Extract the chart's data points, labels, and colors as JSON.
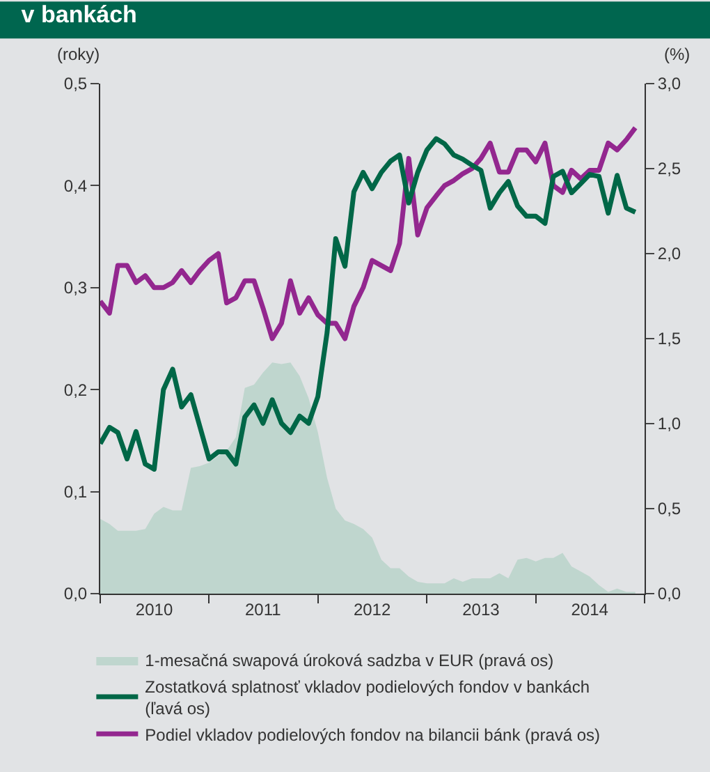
{
  "chart_data": {
    "type": "line",
    "title": "v bankách",
    "ylabel": "(roky)",
    "y2label": "(%)",
    "x": [
      "2010-01",
      "2010-02",
      "2010-03",
      "2010-04",
      "2010-05",
      "2010-06",
      "2010-07",
      "2010-08",
      "2010-09",
      "2010-10",
      "2010-11",
      "2010-12",
      "2011-01",
      "2011-02",
      "2011-03",
      "2011-04",
      "2011-05",
      "2011-06",
      "2011-07",
      "2011-08",
      "2011-09",
      "2011-10",
      "2011-11",
      "2011-12",
      "2012-01",
      "2012-02",
      "2012-03",
      "2012-04",
      "2012-05",
      "2012-06",
      "2012-07",
      "2012-08",
      "2012-09",
      "2012-10",
      "2012-11",
      "2012-12",
      "2013-01",
      "2013-02",
      "2013-03",
      "2013-04",
      "2013-05",
      "2013-06",
      "2013-07",
      "2013-08",
      "2013-09",
      "2013-10",
      "2013-11",
      "2013-12",
      "2014-01",
      "2014-02",
      "2014-03",
      "2014-04",
      "2014-05",
      "2014-06",
      "2014-07",
      "2014-08",
      "2014-09",
      "2014-10",
      "2014-11",
      "2014-12"
    ],
    "series": [
      {
        "name": "1-mesačná swapová úroková sadzba v EUR (pravá os)",
        "type": "area",
        "axis": "y2",
        "color": "#bfd6ce",
        "values": [
          0.44,
          0.41,
          0.37,
          0.37,
          0.37,
          0.38,
          0.47,
          0.51,
          0.49,
          0.49,
          0.74,
          0.75,
          0.77,
          0.81,
          0.84,
          0.92,
          1.21,
          1.23,
          1.3,
          1.36,
          1.35,
          1.36,
          1.28,
          1.15,
          0.95,
          0.68,
          0.5,
          0.43,
          0.41,
          0.38,
          0.33,
          0.2,
          0.15,
          0.15,
          0.1,
          0.07,
          0.06,
          0.06,
          0.06,
          0.09,
          0.07,
          0.09,
          0.09,
          0.09,
          0.12,
          0.09,
          0.2,
          0.21,
          0.19,
          0.21,
          0.21,
          0.24,
          0.16,
          0.13,
          0.1,
          0.05,
          0.01,
          0.03,
          0.01,
          0.01
        ]
      },
      {
        "name": "Zostatková splatnosť vkladov podielových fondov v bankách (ľavá os)",
        "axis": "y",
        "color": "#006747",
        "values": [
          0.147,
          0.163,
          0.158,
          0.132,
          0.159,
          0.127,
          0.122,
          0.2,
          0.22,
          0.183,
          0.195,
          0.164,
          0.132,
          0.139,
          0.139,
          0.127,
          0.173,
          0.185,
          0.167,
          0.19,
          0.167,
          0.158,
          0.174,
          0.167,
          0.193,
          0.256,
          0.348,
          0.321,
          0.394,
          0.413,
          0.397,
          0.413,
          0.424,
          0.43,
          0.383,
          0.413,
          0.435,
          0.446,
          0.441,
          0.43,
          0.426,
          0.42,
          0.415,
          0.378,
          0.393,
          0.404,
          0.38,
          0.37,
          0.37,
          0.363,
          0.409,
          0.414,
          0.393,
          0.402,
          0.411,
          0.409,
          0.373,
          0.41,
          0.378,
          0.374
        ]
      },
      {
        "name": "Podiel vkladov podielových fondov na bilancii bánk (pravá os)",
        "axis": "y2",
        "color": "#93278f",
        "values": [
          1.72,
          1.65,
          1.93,
          1.93,
          1.83,
          1.87,
          1.8,
          1.8,
          1.83,
          1.9,
          1.83,
          1.9,
          1.96,
          2.0,
          1.71,
          1.74,
          1.84,
          1.84,
          1.68,
          1.5,
          1.59,
          1.84,
          1.65,
          1.74,
          1.64,
          1.59,
          1.59,
          1.5,
          1.69,
          1.8,
          1.96,
          1.93,
          1.9,
          2.06,
          2.56,
          2.11,
          2.27,
          2.34,
          2.4,
          2.43,
          2.47,
          2.5,
          2.56,
          2.65,
          2.48,
          2.48,
          2.61,
          2.61,
          2.54,
          2.65,
          2.4,
          2.36,
          2.49,
          2.44,
          2.49,
          2.49,
          2.65,
          2.61,
          2.67,
          2.74
        ]
      }
    ],
    "xlim": [
      "2010-01-01",
      "2015-01-01"
    ],
    "xticks": [
      {
        "value": "2010-01-01",
        "label": null
      },
      {
        "value": "2010-07-01",
        "label": "2010"
      },
      {
        "value": "2011-01-01",
        "label": null
      },
      {
        "value": "2011-07-01",
        "label": "2011"
      },
      {
        "value": "2012-01-01",
        "label": null
      },
      {
        "value": "2012-07-01",
        "label": "2012"
      },
      {
        "value": "2013-01-01",
        "label": null
      },
      {
        "value": "2013-07-01",
        "label": "2013"
      },
      {
        "value": "2014-01-01",
        "label": null
      },
      {
        "value": "2014-07-01",
        "label": "2014"
      },
      {
        "value": "2015-01-01",
        "label": null
      }
    ],
    "ylim": [
      0,
      0.5
    ],
    "yticks": [
      {
        "value": 0,
        "label": "0,0"
      },
      {
        "value": 0.1,
        "label": "0,1"
      },
      {
        "value": 0.2,
        "label": "0,2"
      },
      {
        "value": 0.3,
        "label": "0,3"
      },
      {
        "value": 0.4,
        "label": "0,4"
      },
      {
        "value": 0.5,
        "label": "0,5"
      }
    ],
    "y2lim": [
      0,
      3
    ],
    "y2ticks": [
      {
        "value": 0,
        "label": "0,0"
      },
      {
        "value": 0.5,
        "label": "0,5"
      },
      {
        "value": 1,
        "label": "1,0"
      },
      {
        "value": 1.5,
        "label": "1,5"
      },
      {
        "value": 2,
        "label": "2,0"
      },
      {
        "value": 2.5,
        "label": "2,5"
      },
      {
        "value": 3,
        "label": "3,0"
      }
    ],
    "grid": false,
    "legend": "bottom",
    "marker": "none",
    "line_style": "solid"
  }
}
